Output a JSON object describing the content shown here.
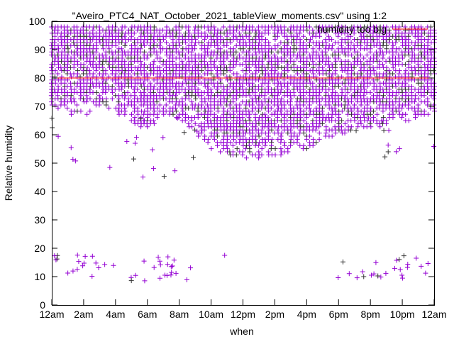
{
  "chart_data": {
    "type": "scatter",
    "title": "",
    "xlabel": "when",
    "ylabel": "Relative humidity",
    "xlim": [
      0,
      24
    ],
    "ylim": [
      0,
      100
    ],
    "grid": false,
    "legend_position": "top-right",
    "x_ticks": [
      {
        "value": 0,
        "label": "12am"
      },
      {
        "value": 2,
        "label": "2am"
      },
      {
        "value": 4,
        "label": "4am"
      },
      {
        "value": 6,
        "label": "6am"
      },
      {
        "value": 8,
        "label": "8am"
      },
      {
        "value": 10,
        "label": "10am"
      },
      {
        "value": 12,
        "label": "12pm"
      },
      {
        "value": 14,
        "label": "2pm"
      },
      {
        "value": 16,
        "label": "4pm"
      },
      {
        "value": 18,
        "label": "6pm"
      },
      {
        "value": 20,
        "label": "8pm"
      },
      {
        "value": 22,
        "label": "10pm"
      },
      {
        "value": 24,
        "label": "12am"
      }
    ],
    "y_ticks": [
      0,
      10,
      20,
      30,
      40,
      50,
      60,
      70,
      80,
      90,
      100
    ],
    "series": [
      {
        "name": "\"Aveiro_PTC4_NAT_October_2021_tableView_moments.csv\" using 1:2",
        "color": "#9400d3",
        "marker": "plus",
        "upper_limit": 98,
        "dense_lower_envelope": [
          [
            0,
            70
          ],
          [
            1,
            67
          ],
          [
            2,
            65
          ],
          [
            3,
            70
          ],
          [
            4,
            68
          ],
          [
            5,
            64
          ],
          [
            6,
            62
          ],
          [
            7,
            66
          ],
          [
            8,
            65
          ],
          [
            9,
            60
          ],
          [
            10,
            55
          ],
          [
            11,
            53
          ],
          [
            12,
            52
          ],
          [
            13,
            51
          ],
          [
            14,
            52
          ],
          [
            15,
            53
          ],
          [
            16,
            55
          ],
          [
            17,
            58
          ],
          [
            18,
            60
          ],
          [
            19,
            61
          ],
          [
            20,
            62
          ],
          [
            21,
            63
          ],
          [
            22,
            64
          ],
          [
            23,
            66
          ],
          [
            24,
            68
          ]
        ],
        "sparse_bands": [
          {
            "x": [
              0,
              9.5
            ],
            "y": [
              45,
              66
            ],
            "density": 0.12
          },
          {
            "x": [
              19,
              24
            ],
            "y": [
              48,
              66
            ],
            "density": 0.12
          },
          {
            "x": [
              0,
              8.8
            ],
            "y": [
              8,
              18
            ],
            "density": 0.45
          },
          {
            "x": [
              9,
              11
            ],
            "y": [
              14,
              19
            ],
            "density": 0.05
          },
          {
            "x": [
              17.8,
              24
            ],
            "y": [
              9,
              18
            ],
            "density": 0.45
          }
        ]
      },
      {
        "name": "humidity_too_big",
        "legend_label": "humidity too big",
        "color": "#ff0000",
        "type": "line",
        "y": 80
      }
    ]
  }
}
